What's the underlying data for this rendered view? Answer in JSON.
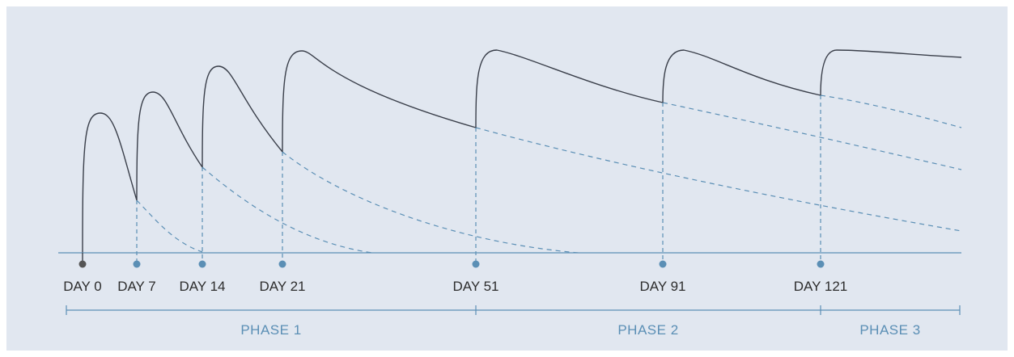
{
  "colors": {
    "background": "#e1e7f0",
    "curve": "#3a3f4a",
    "accent": "#5b8fb5",
    "day0_marker": "#555555",
    "label_text": "#2d2d2d"
  },
  "days": [
    {
      "label": "DAY 0",
      "day": 0
    },
    {
      "label": "DAY 7",
      "day": 7
    },
    {
      "label": "DAY 14",
      "day": 14
    },
    {
      "label": "DAY 21",
      "day": 21
    },
    {
      "label": "DAY 51",
      "day": 51
    },
    {
      "label": "DAY 91",
      "day": 91
    },
    {
      "label": "DAY 121",
      "day": 121
    }
  ],
  "phases": [
    {
      "label": "PHASE 1"
    },
    {
      "label": "PHASE 2"
    },
    {
      "label": "PHASE 3"
    }
  ]
}
